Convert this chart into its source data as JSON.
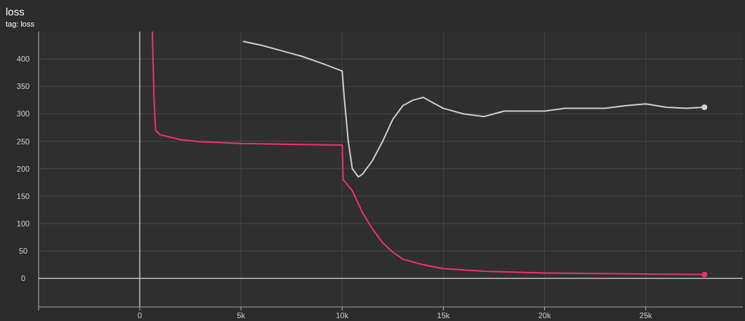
{
  "chart_data": {
    "type": "line",
    "title": "loss",
    "subtitle": "tag: loss",
    "xlim": [
      -5000,
      29800
    ],
    "ylim": [
      -52,
      450
    ],
    "xticks": [
      {
        "value": -5000,
        "label": null
      },
      {
        "value": 0,
        "label": "0"
      },
      {
        "value": 5000,
        "label": "5k"
      },
      {
        "value": 10000,
        "label": "10k"
      },
      {
        "value": 15000,
        "label": "15k"
      },
      {
        "value": 20000,
        "label": "20k"
      },
      {
        "value": 25000,
        "label": "25k"
      }
    ],
    "yticks": [
      0,
      50,
      100,
      150,
      200,
      250,
      300,
      350,
      400
    ],
    "grid": true,
    "series": [
      {
        "color": "#f0326e",
        "x": [
          620,
          700,
          780,
          1000,
          2000,
          3000,
          5000,
          8000,
          10000,
          10050,
          10500,
          11000,
          11500,
          12000,
          12500,
          13000,
          14000,
          15000,
          17000,
          20000,
          25000,
          27900
        ],
        "values": [
          450,
          330,
          270,
          262,
          253,
          249,
          246,
          244,
          243,
          180,
          160,
          120,
          90,
          65,
          48,
          35,
          25,
          18,
          13,
          10,
          8,
          7
        ]
      },
      {
        "color": "#d0d0d0",
        "x": [
          5100,
          6000,
          7000,
          8000,
          9000,
          9500,
          10000,
          10100,
          10300,
          10500,
          10800,
          11000,
          11500,
          12000,
          12500,
          13000,
          13500,
          14000,
          14500,
          15000,
          16000,
          17000,
          17500,
          18000,
          19000,
          20000,
          21000,
          22000,
          23000,
          24000,
          25000,
          26000,
          27000,
          27900
        ],
        "values": [
          432,
          425,
          415,
          405,
          392,
          385,
          378,
          330,
          250,
          200,
          185,
          190,
          215,
          250,
          290,
          315,
          325,
          330,
          320,
          310,
          300,
          295,
          300,
          305,
          305,
          305,
          310,
          310,
          310,
          315,
          318,
          312,
          310,
          312
        ]
      }
    ]
  }
}
